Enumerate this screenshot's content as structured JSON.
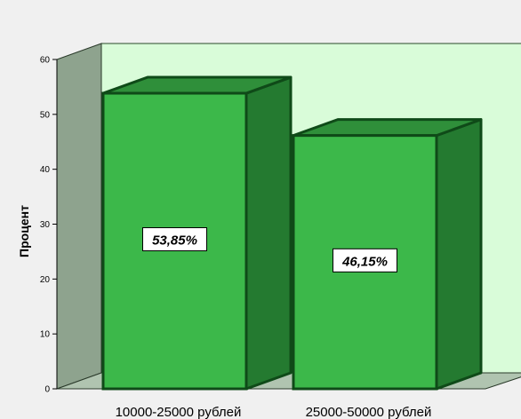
{
  "chart_data": {
    "type": "bar",
    "categories": [
      "10000-25000 рублей",
      "25000-50000 рублей"
    ],
    "values": [
      53.85,
      46.15
    ],
    "data_labels": [
      "53,85%",
      "46,15%"
    ],
    "title": "",
    "xlabel": "",
    "ylabel": "Процент",
    "ylim": [
      0,
      60
    ],
    "yticks": [
      0,
      10,
      20,
      30,
      40,
      50,
      60
    ],
    "ytick_labels": [
      "0",
      "10",
      "20",
      "30",
      "40",
      "50",
      "60"
    ],
    "grid": false,
    "style_3d": true,
    "colors": {
      "background": "#f0f0f0",
      "back_wall": "#d9fcd9",
      "side_wall": "#8ea38e",
      "floor": "#b0c4b0",
      "bar_front": "#3cb84a",
      "bar_side": "#247a30",
      "bar_top": "#2f8f3a",
      "bar_outline": "#0f4a18"
    }
  }
}
